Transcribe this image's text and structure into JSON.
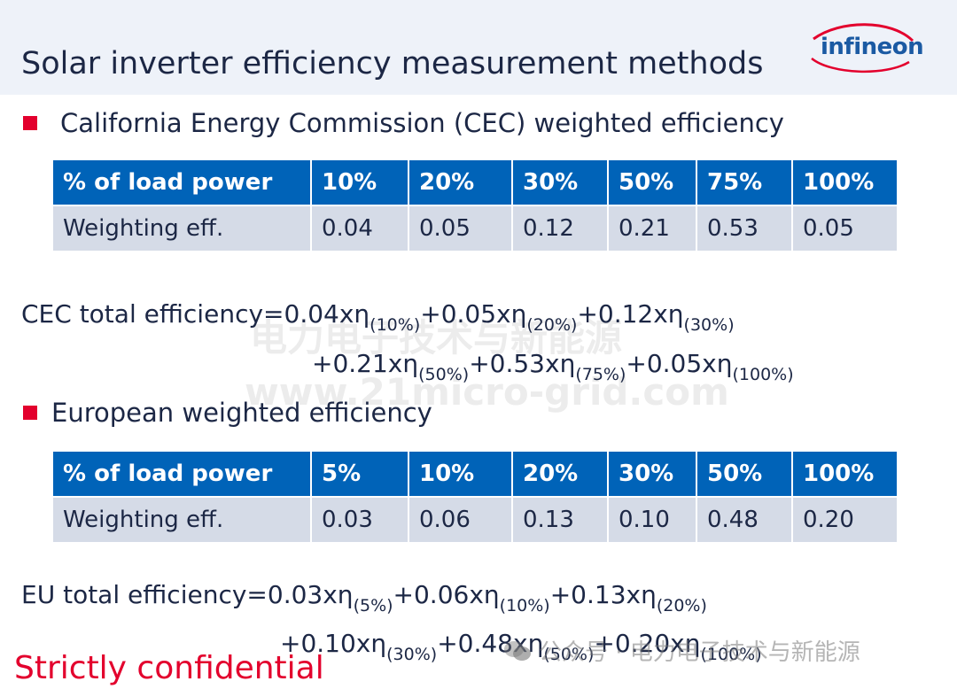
{
  "slide": {
    "title": "Solar inverter efficiency measurement methods",
    "logo_text": "infineon",
    "footer_left": "Strictly confidential",
    "footer_watermark": "公众号 · 电力电子技术与新能源"
  },
  "watermark": {
    "line1": "电力电子技术与新能源",
    "line2": "www.21micro-grid.com"
  },
  "cec": {
    "heading": "California Energy Commission (CEC) weighted efficiency",
    "table": {
      "header": [
        "% of load power",
        "10%",
        "20%",
        "30%",
        "50%",
        "75%",
        "100%"
      ],
      "row": [
        "Weighting eff.",
        "0.04",
        "0.05",
        "0.12",
        "0.21",
        "0.53",
        "0.05"
      ]
    },
    "formula": {
      "label": "CEC total efficiency=",
      "terms": [
        {
          "coef": "0.04xη",
          "sub": "(10%)"
        },
        {
          "coef": "+0.05xη",
          "sub": "(20%)"
        },
        {
          "coef": "+0.12xη",
          "sub": "(30%)"
        },
        {
          "coef": "+0.21xη",
          "sub": "(50%)"
        },
        {
          "coef": "+0.53xη",
          "sub": "(75%)"
        },
        {
          "coef": "+0.05xη",
          "sub": "(100%)"
        }
      ]
    }
  },
  "eu": {
    "heading": "European weighted efficiency",
    "table": {
      "header": [
        "% of load power",
        "5%",
        "10%",
        "20%",
        "30%",
        "50%",
        "100%"
      ],
      "row": [
        "Weighting eff.",
        "0.03",
        "0.06",
        "0.13",
        "0.10",
        "0.48",
        "0.20"
      ]
    },
    "formula": {
      "label": "EU total efficiency=",
      "terms": [
        {
          "coef": "0.03xη",
          "sub": "(5%)"
        },
        {
          "coef": "+0.06xη",
          "sub": "(10%)"
        },
        {
          "coef": "+0.13xη",
          "sub": "(20%)"
        },
        {
          "coef": "+0.10xη",
          "sub": "(30%)"
        },
        {
          "coef": "+0.48xη",
          "sub": "(50%)"
        },
        {
          "coef": "+0.20xη",
          "sub": "(100%)"
        }
      ]
    }
  },
  "colors": {
    "header_blue": "#0063b8",
    "row_gray": "#d5dbe7",
    "accent_red": "#e3002d",
    "text_navy": "#1c2745"
  }
}
